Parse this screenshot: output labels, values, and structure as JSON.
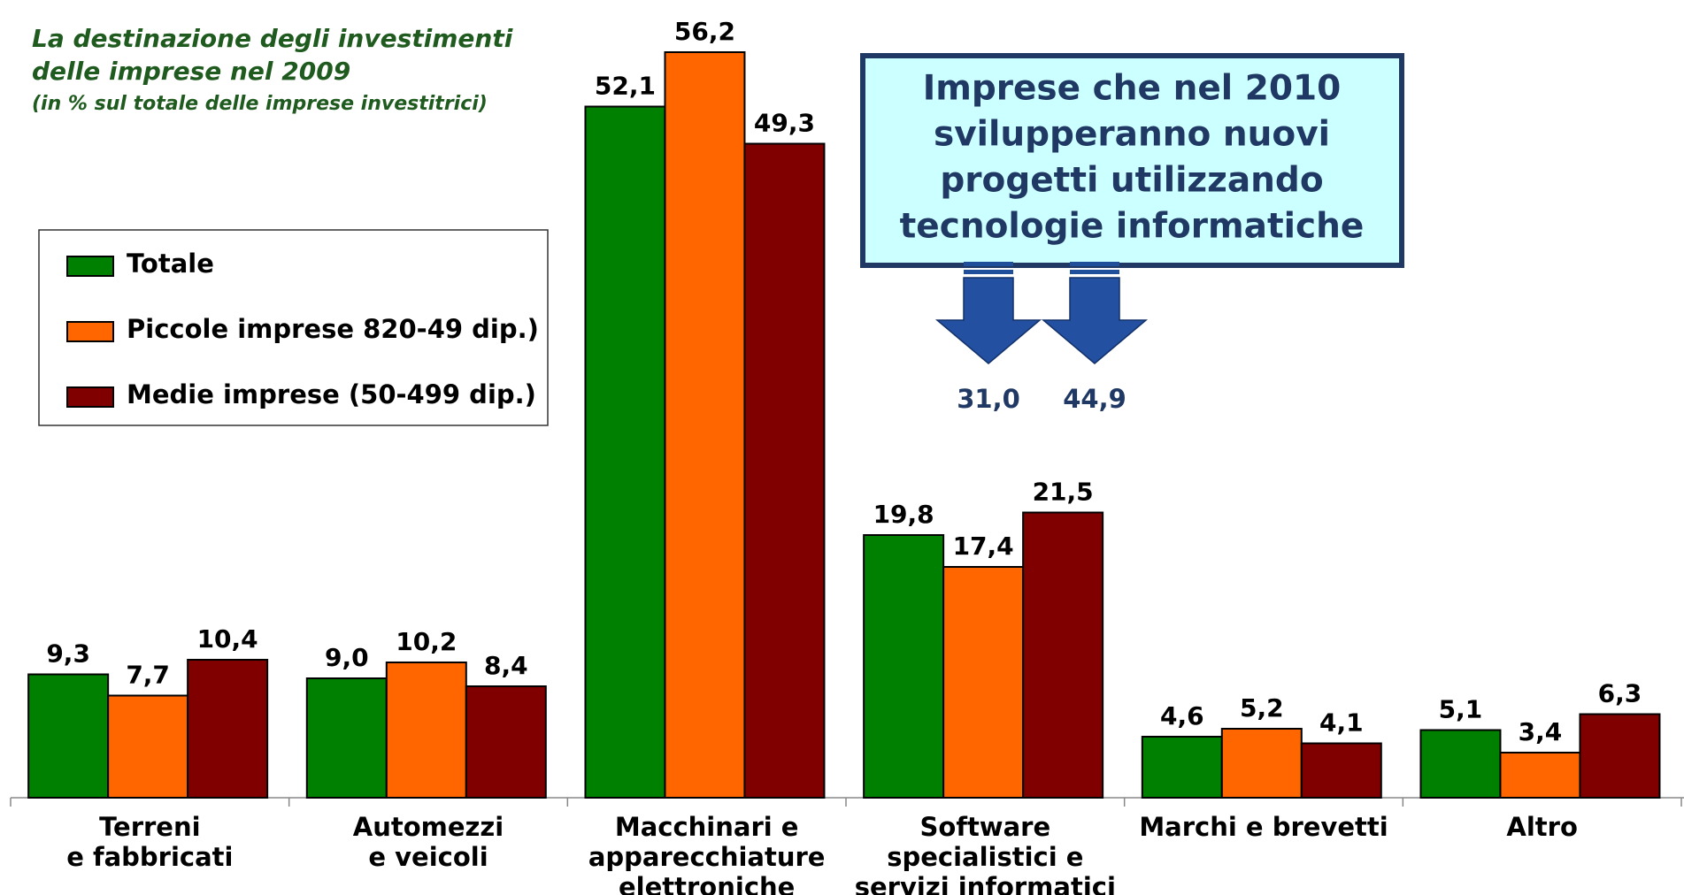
{
  "chart_data": {
    "type": "bar",
    "title": [
      "La destinazione degli investimenti",
      "delle imprese nel 2009"
    ],
    "subtitle": "(in % sul totale delle imprese investitrici)",
    "categories": [
      [
        "Terreni",
        "e fabbricati"
      ],
      [
        "Automezzi",
        "e veicoli"
      ],
      [
        "Macchinari e",
        "apparecchiature",
        "elettroniche"
      ],
      [
        "Software",
        "specialistici e",
        "servizi informatici"
      ],
      [
        "Marchi e brevetti"
      ],
      [
        "Altro"
      ]
    ],
    "series": [
      {
        "name": "Totale",
        "color": "#008000",
        "values": [
          9.3,
          9.0,
          52.1,
          19.8,
          4.6,
          5.1
        ],
        "value_labels": [
          "9,3",
          "9,0",
          "52,1",
          "19,8",
          "4,6",
          "5,1"
        ]
      },
      {
        "name": "Piccole imprese 820-49 dip.)",
        "color": "#ff6600",
        "values": [
          7.7,
          10.2,
          56.2,
          17.4,
          5.2,
          3.4
        ],
        "value_labels": [
          "7,7",
          "10,2",
          "56,2",
          "17,4",
          "5,2",
          "3,4"
        ]
      },
      {
        "name": "Medie imprese (50-499 dip.)",
        "color": "#800000",
        "values": [
          10.4,
          8.4,
          49.3,
          21.5,
          4.1,
          6.3
        ],
        "value_labels": [
          "10,4",
          "8,4",
          "49,3",
          "21,5",
          "4,1",
          "6,3"
        ]
      }
    ],
    "ylim": [
      0,
      60
    ],
    "legend": "left",
    "callout": {
      "text": [
        "Imprese che nel 2010",
        "svilupperanno nuovi",
        "progetti utilizzando",
        "tecnologie informatiche"
      ],
      "values": [
        31.0,
        44.9
      ],
      "value_labels": [
        "31,0",
        "44,9"
      ]
    }
  }
}
